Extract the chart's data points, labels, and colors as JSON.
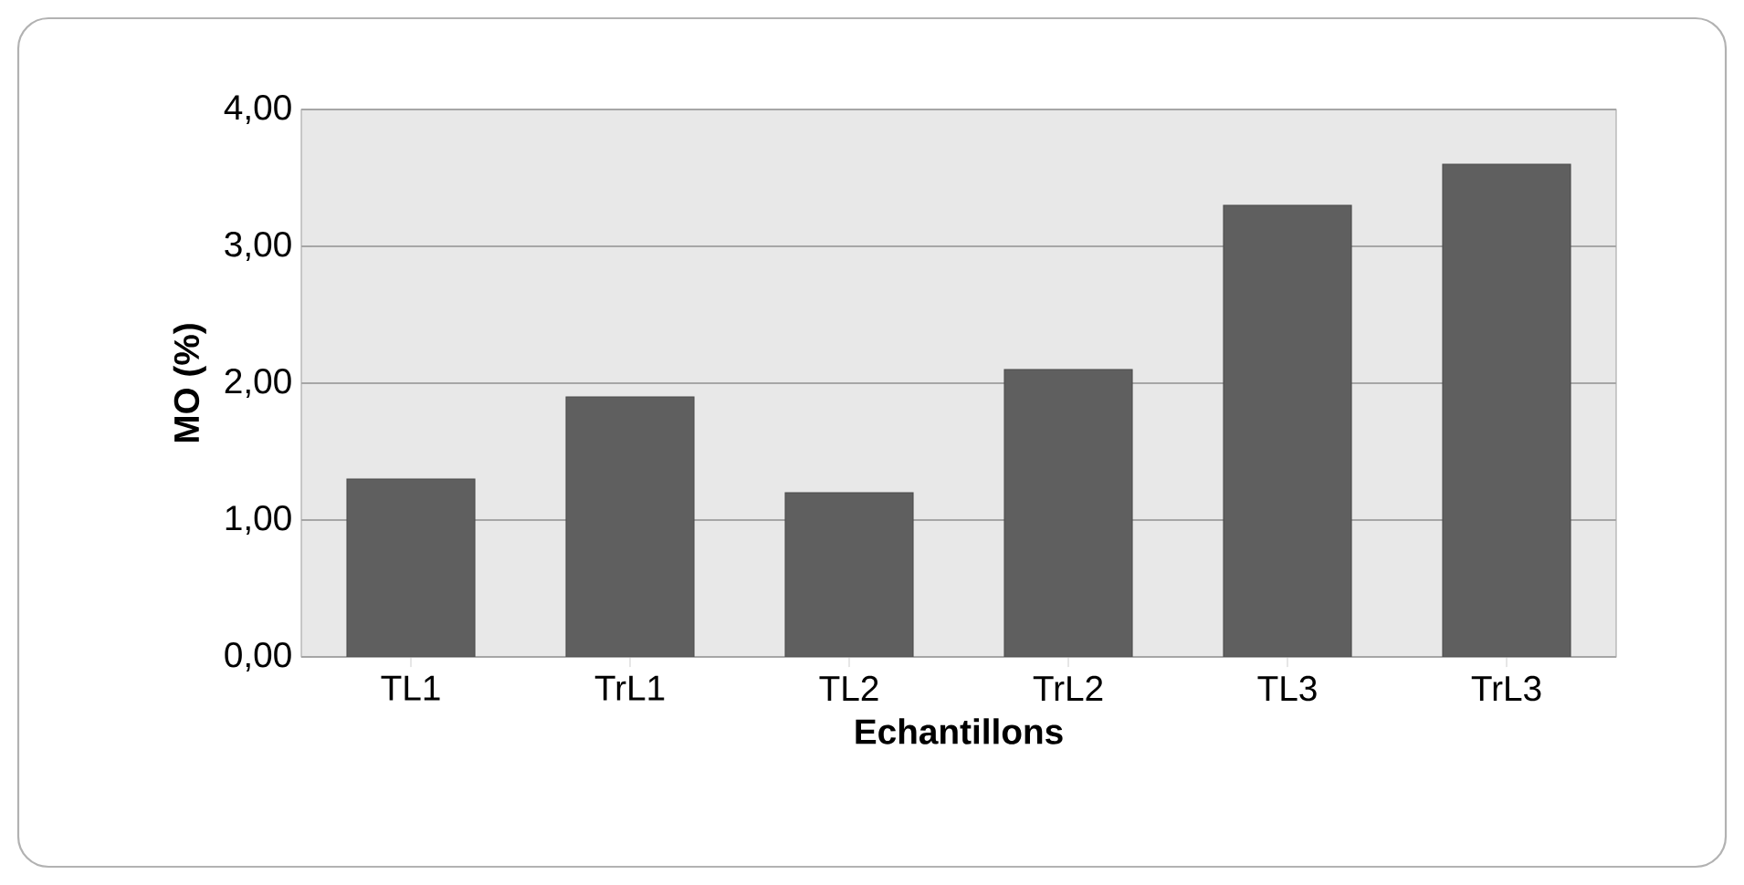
{
  "chart_data": {
    "type": "bar",
    "xlabel": "Echantillons",
    "ylabel": "MO (%)",
    "categories": [
      "TL1",
      "TrL1",
      "TL2",
      "TrL2",
      "TL3",
      "TrL3"
    ],
    "values": [
      1.3,
      1.9,
      1.2,
      2.1,
      3.3,
      3.6
    ],
    "color": "#5f5f5f",
    "ylim": [
      0,
      4
    ],
    "yticks": [
      {
        "value": 0,
        "label": "0,00"
      },
      {
        "value": 1,
        "label": "1,00"
      },
      {
        "value": 2,
        "label": "2,00"
      },
      {
        "value": 3,
        "label": "3,00"
      },
      {
        "value": 4,
        "label": "4,00"
      }
    ],
    "grid": "y"
  }
}
